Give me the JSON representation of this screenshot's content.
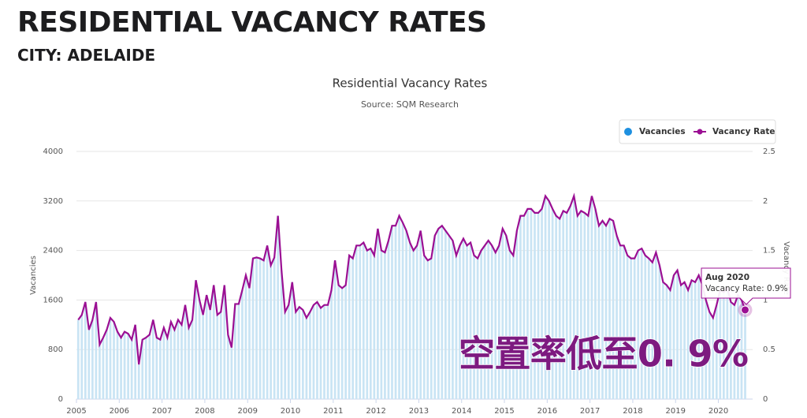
{
  "header": {
    "title": "RESIDENTIAL VACANCY RATES",
    "subtitle": "CITY: ADELAIDE"
  },
  "chart_data": {
    "type": "bar-line",
    "title": "Residential Vacancy Rates",
    "subtitle": "Source: SQM Research",
    "y_label": "Vacancies",
    "y2_label": "Vacancy Rate",
    "xlim": [
      2005,
      2020.8
    ],
    "xticks": [
      2005,
      2006,
      2007,
      2008,
      2009,
      2010,
      2011,
      2012,
      2013,
      2014,
      2015,
      2016,
      2017,
      2018,
      2019,
      2020
    ],
    "ylim": [
      0,
      4000
    ],
    "yticks": [
      0,
      800,
      1600,
      2400,
      3200,
      4000
    ],
    "y2lim": [
      0,
      2.5
    ],
    "y2ticks": [
      0,
      0.5,
      1,
      1.5,
      2,
      2.5
    ],
    "grid": true,
    "series": [
      {
        "name": "Vacancies",
        "type": "bar",
        "color": "#c9e4f4",
        "legend_color": "#1e90e0",
        "values": [
          1280,
          1360,
          1570,
          1120,
          1280,
          1570,
          880,
          990,
          1120,
          1310,
          1250,
          1090,
          990,
          1090,
          1060,
          960,
          1200,
          560,
          960,
          990,
          1040,
          1280,
          990,
          960,
          1150,
          990,
          1250,
          1120,
          1280,
          1200,
          1520,
          1150,
          1280,
          1920,
          1600,
          1360,
          1680,
          1440,
          1840,
          1360,
          1410,
          1840,
          1040,
          830,
          1540,
          1540,
          1760,
          2000,
          1790,
          2270,
          2290,
          2270,
          2240,
          2480,
          2160,
          2290,
          2960,
          2080,
          1410,
          1520,
          1890,
          1410,
          1490,
          1440,
          1310,
          1410,
          1520,
          1570,
          1470,
          1520,
          1520,
          1760,
          2240,
          1840,
          1790,
          1840,
          2320,
          2270,
          2480,
          2480,
          2530,
          2400,
          2430,
          2320,
          2750,
          2400,
          2370,
          2560,
          2800,
          2800,
          2960,
          2850,
          2720,
          2530,
          2400,
          2480,
          2720,
          2320,
          2240,
          2270,
          2640,
          2750,
          2800,
          2720,
          2640,
          2560,
          2320,
          2480,
          2590,
          2480,
          2530,
          2320,
          2270,
          2400,
          2480,
          2560,
          2480,
          2370,
          2480,
          2750,
          2640,
          2400,
          2320,
          2720,
          2960,
          2960,
          3070,
          3070,
          3010,
          3010,
          3070,
          3280,
          3200,
          3070,
          2960,
          2910,
          3040,
          3010,
          3120,
          3280,
          2960,
          3040,
          3010,
          2960,
          3280,
          3070,
          2800,
          2880,
          2800,
          2910,
          2880,
          2640,
          2480,
          2480,
          2320,
          2270,
          2270,
          2400,
          2430,
          2320,
          2270,
          2210,
          2370,
          2160,
          1890,
          1840,
          1760,
          2000,
          2080,
          1840,
          1890,
          1760,
          1920,
          1890,
          2000,
          1840,
          1600,
          1410,
          1310,
          1520,
          1760,
          1730,
          1790,
          1570,
          1520,
          1680,
          1600,
          1440
        ]
      },
      {
        "name": "Vacancy Rate",
        "type": "line",
        "axis": "y2",
        "color": "#9b0f93",
        "values": [
          0.8,
          0.85,
          0.98,
          0.7,
          0.8,
          0.98,
          0.55,
          0.62,
          0.7,
          0.82,
          0.78,
          0.68,
          0.62,
          0.68,
          0.66,
          0.6,
          0.75,
          0.35,
          0.6,
          0.62,
          0.65,
          0.8,
          0.62,
          0.6,
          0.72,
          0.62,
          0.78,
          0.7,
          0.8,
          0.75,
          0.95,
          0.72,
          0.8,
          1.2,
          1.0,
          0.85,
          1.05,
          0.9,
          1.15,
          0.85,
          0.88,
          1.15,
          0.65,
          0.52,
          0.96,
          0.96,
          1.1,
          1.25,
          1.12,
          1.42,
          1.43,
          1.42,
          1.4,
          1.55,
          1.35,
          1.43,
          1.85,
          1.3,
          0.88,
          0.95,
          1.18,
          0.88,
          0.93,
          0.9,
          0.82,
          0.88,
          0.95,
          0.98,
          0.92,
          0.95,
          0.95,
          1.1,
          1.4,
          1.15,
          1.12,
          1.15,
          1.45,
          1.42,
          1.55,
          1.55,
          1.58,
          1.5,
          1.52,
          1.45,
          1.72,
          1.5,
          1.48,
          1.6,
          1.75,
          1.75,
          1.85,
          1.78,
          1.7,
          1.58,
          1.5,
          1.55,
          1.7,
          1.45,
          1.4,
          1.42,
          1.65,
          1.72,
          1.75,
          1.7,
          1.65,
          1.6,
          1.45,
          1.55,
          1.62,
          1.55,
          1.58,
          1.45,
          1.42,
          1.5,
          1.55,
          1.6,
          1.55,
          1.48,
          1.55,
          1.72,
          1.65,
          1.5,
          1.45,
          1.7,
          1.85,
          1.85,
          1.92,
          1.92,
          1.88,
          1.88,
          1.92,
          2.05,
          2.0,
          1.92,
          1.85,
          1.82,
          1.9,
          1.88,
          1.95,
          2.05,
          1.85,
          1.9,
          1.88,
          1.85,
          2.05,
          1.92,
          1.75,
          1.8,
          1.75,
          1.82,
          1.8,
          1.65,
          1.55,
          1.55,
          1.45,
          1.42,
          1.42,
          1.5,
          1.52,
          1.45,
          1.42,
          1.38,
          1.48,
          1.35,
          1.18,
          1.15,
          1.1,
          1.25,
          1.3,
          1.15,
          1.18,
          1.1,
          1.2,
          1.18,
          1.25,
          1.15,
          1.0,
          0.88,
          0.82,
          0.95,
          1.1,
          1.08,
          1.12,
          0.98,
          0.95,
          1.05,
          1.0,
          0.9
        ]
      }
    ],
    "tooltip": {
      "title": "Aug 2020",
      "text": "Vacancy Rate: 0.9%"
    },
    "annotation": "空置率低至0. 9%"
  }
}
